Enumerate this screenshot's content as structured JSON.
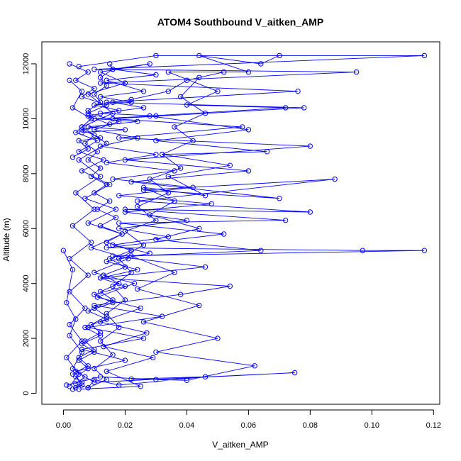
{
  "chart_data": {
    "type": "line",
    "title": "ATOM4 Southbound V_aitken_AMP",
    "xlabel": "V_aitken_AMP",
    "ylabel": "Altitude (m)",
    "xlim": [
      -0.007,
      0.122
    ],
    "ylim": [
      -400,
      12800
    ],
    "x_ticks": [
      0.0,
      0.02,
      0.04,
      0.06,
      0.08,
      0.1,
      0.12
    ],
    "x_tick_labels": [
      "0.00",
      "0.02",
      "0.04",
      "0.06",
      "0.08",
      "0.10",
      "0.12"
    ],
    "y_ticks": [
      0,
      2000,
      4000,
      6000,
      8000,
      10000,
      12000
    ],
    "y_tick_labels": [
      "0",
      "2000",
      "4000",
      "6000",
      "8000",
      "10000",
      "12000"
    ],
    "grid": false,
    "legend": false,
    "color": "#0000ff",
    "marker": "open-circle",
    "series": [
      {
        "points": [
          [
            0.004,
            200
          ],
          [
            0.006,
            400
          ],
          [
            0.003,
            700
          ],
          [
            0.008,
            1000
          ],
          [
            0.005,
            1300
          ],
          [
            0.01,
            1600
          ],
          [
            0.007,
            1900
          ],
          [
            0.012,
            2200
          ],
          [
            0.009,
            2500
          ],
          [
            0.014,
            2800
          ],
          [
            0.01,
            3100
          ],
          [
            0.016,
            3400
          ],
          [
            0.012,
            3700
          ],
          [
            0.018,
            4000
          ],
          [
            0.013,
            4300
          ],
          [
            0.02,
            4600
          ],
          [
            0.015,
            4900
          ],
          [
            0.022,
            5200
          ],
          [
            0.014,
            5500
          ],
          [
            0.019,
            5800
          ],
          [
            0.012,
            6100
          ],
          [
            0.017,
            6400
          ],
          [
            0.011,
            6700
          ],
          [
            0.015,
            7000
          ],
          [
            0.01,
            7300
          ],
          [
            0.014,
            7600
          ],
          [
            0.009,
            7900
          ],
          [
            0.012,
            8200
          ],
          [
            0.008,
            8500
          ],
          [
            0.011,
            8800
          ],
          [
            0.007,
            9100
          ],
          [
            0.01,
            9400
          ],
          [
            0.006,
            9700
          ],
          [
            0.009,
            10000
          ],
          [
            0.008,
            10300
          ],
          [
            0.012,
            10600
          ],
          [
            0.01,
            10900
          ],
          [
            0.014,
            11200
          ],
          [
            0.012,
            11500
          ],
          [
            0.016,
            11800
          ],
          [
            0.015,
            12000
          ]
        ]
      },
      {
        "points": [
          [
            0.002,
            12000
          ],
          [
            0.008,
            11700
          ],
          [
            0.004,
            11400
          ],
          [
            0.01,
            11100
          ],
          [
            0.006,
            10800
          ],
          [
            0.014,
            10500
          ],
          [
            0.008,
            10200
          ],
          [
            0.018,
            9900
          ],
          [
            0.01,
            9600
          ],
          [
            0.024,
            9300
          ],
          [
            0.012,
            9000
          ],
          [
            0.03,
            8700
          ],
          [
            0.014,
            8400
          ],
          [
            0.036,
            8100
          ],
          [
            0.016,
            7800
          ],
          [
            0.042,
            7500
          ],
          [
            0.018,
            7200
          ],
          [
            0.048,
            6900
          ],
          [
            0.02,
            6600
          ],
          [
            0.04,
            6300
          ],
          [
            0.018,
            6000
          ],
          [
            0.034,
            5700
          ],
          [
            0.016,
            5400
          ],
          [
            0.028,
            5100
          ],
          [
            0.014,
            4800
          ],
          [
            0.024,
            4500
          ],
          [
            0.012,
            4200
          ],
          [
            0.02,
            3900
          ],
          [
            0.01,
            3600
          ],
          [
            0.016,
            3300
          ],
          [
            0.008,
            3000
          ],
          [
            0.014,
            2700
          ],
          [
            0.007,
            2400
          ],
          [
            0.012,
            2100
          ],
          [
            0.006,
            1800
          ],
          [
            0.01,
            1500
          ],
          [
            0.005,
            1200
          ],
          [
            0.008,
            900
          ],
          [
            0.004,
            600
          ],
          [
            0.006,
            300
          ],
          [
            0.003,
            150
          ]
        ]
      },
      {
        "points": [
          [
            0.001,
            300
          ],
          [
            0.012,
            600
          ],
          [
            0.03,
            500
          ],
          [
            0.075,
            750
          ],
          [
            0.01,
            400
          ],
          [
            0.004,
            800
          ],
          [
            0.02,
            1200
          ],
          [
            0.006,
            1600
          ],
          [
            0.026,
            2000
          ],
          [
            0.008,
            2400
          ],
          [
            0.032,
            2800
          ],
          [
            0.01,
            3200
          ],
          [
            0.038,
            3600
          ],
          [
            0.054,
            3900
          ],
          [
            0.012,
            4200
          ],
          [
            0.046,
            4600
          ],
          [
            0.016,
            5000
          ],
          [
            0.117,
            5200
          ],
          [
            0.097,
            5200
          ],
          [
            0.014,
            5300
          ],
          [
            0.052,
            5800
          ],
          [
            0.018,
            6200
          ],
          [
            0.072,
            6300
          ],
          [
            0.02,
            6700
          ],
          [
            0.08,
            6600
          ],
          [
            0.024,
            7000
          ],
          [
            0.088,
            7800
          ],
          [
            0.026,
            7400
          ],
          [
            0.07,
            7100
          ],
          [
            0.022,
            7700
          ],
          [
            0.06,
            8100
          ],
          [
            0.02,
            8500
          ],
          [
            0.08,
            9000
          ],
          [
            0.018,
            9300
          ],
          [
            0.058,
            9700
          ],
          [
            0.016,
            10000
          ],
          [
            0.078,
            10400
          ],
          [
            0.014,
            10600
          ],
          [
            0.076,
            11000
          ],
          [
            0.012,
            11300
          ],
          [
            0.095,
            11700
          ],
          [
            0.01,
            11800
          ],
          [
            0.117,
            12300
          ],
          [
            0.03,
            12300
          ],
          [
            0.005,
            11900
          ]
        ]
      },
      {
        "points": [
          [
            0.002,
            11400
          ],
          [
            0.006,
            11000
          ],
          [
            0.003,
            10400
          ],
          [
            0.009,
            10000
          ],
          [
            0.004,
            9500
          ],
          [
            0.011,
            9200
          ],
          [
            0.005,
            8800
          ],
          [
            0.013,
            8500
          ],
          [
            0.006,
            8100
          ],
          [
            0.015,
            7600
          ],
          [
            0.007,
            7100
          ],
          [
            0.017,
            6700
          ],
          [
            0.008,
            6200
          ],
          [
            0.019,
            5800
          ],
          [
            0.009,
            5300
          ],
          [
            0.021,
            4900
          ],
          [
            0.01,
            4400
          ],
          [
            0.023,
            4000
          ],
          [
            0.011,
            3500
          ],
          [
            0.025,
            3100
          ],
          [
            0.012,
            2600
          ],
          [
            0.027,
            2200
          ],
          [
            0.013,
            1700
          ],
          [
            0.029,
            1300
          ],
          [
            0.014,
            800
          ],
          [
            0.025,
            250
          ],
          [
            0.005,
            150
          ]
        ]
      },
      {
        "points": [
          [
            0.0,
            5200
          ],
          [
            0.003,
            4500
          ],
          [
            0.001,
            3300
          ],
          [
            0.004,
            2700
          ],
          [
            0.002,
            2100
          ],
          [
            0.006,
            1500
          ],
          [
            0.003,
            900
          ],
          [
            0.007,
            600
          ],
          [
            0.004,
            350
          ],
          [
            0.008,
            200
          ],
          [
            0.01,
            500
          ],
          [
            0.018,
            300
          ],
          [
            0.046,
            600
          ],
          [
            0.022,
            520
          ],
          [
            0.04,
            470
          ],
          [
            0.062,
            1000
          ],
          [
            0.03,
            1500
          ],
          [
            0.05,
            2000
          ],
          [
            0.026,
            2600
          ],
          [
            0.044,
            3200
          ],
          [
            0.024,
            3800
          ],
          [
            0.036,
            4400
          ],
          [
            0.022,
            5000
          ],
          [
            0.064,
            5200
          ],
          [
            0.03,
            5600
          ],
          [
            0.044,
            6000
          ],
          [
            0.028,
            6500
          ],
          [
            0.036,
            7000
          ],
          [
            0.026,
            7500
          ],
          [
            0.046,
            7200
          ],
          [
            0.034,
            7900
          ],
          [
            0.054,
            8300
          ],
          [
            0.032,
            8700
          ],
          [
            0.066,
            8800
          ],
          [
            0.03,
            9200
          ],
          [
            0.06,
            9600
          ],
          [
            0.028,
            10100
          ],
          [
            0.072,
            10400
          ],
          [
            0.04,
            10500
          ],
          [
            0.05,
            11000
          ],
          [
            0.034,
            11700
          ],
          [
            0.06,
            11700
          ],
          [
            0.044,
            12300
          ],
          [
            0.064,
            12000
          ],
          [
            0.07,
            12300
          ]
        ]
      },
      {
        "points": [
          [
            0.003,
            8600
          ],
          [
            0.008,
            8900
          ],
          [
            0.005,
            9200
          ],
          [
            0.012,
            9300
          ],
          [
            0.006,
            9600
          ],
          [
            0.015,
            9800
          ],
          [
            0.008,
            10100
          ],
          [
            0.018,
            10300
          ],
          [
            0.01,
            10500
          ],
          [
            0.022,
            10600
          ],
          [
            0.012,
            10800
          ],
          [
            0.026,
            11000
          ],
          [
            0.014,
            11400
          ],
          [
            0.03,
            11600
          ],
          [
            0.016,
            11800
          ],
          [
            0.028,
            12000
          ],
          [
            0.012,
            11700
          ],
          [
            0.02,
            11300
          ],
          [
            0.008,
            10900
          ],
          [
            0.016,
            10200
          ],
          [
            0.006,
            9700
          ],
          [
            0.014,
            9100
          ],
          [
            0.005,
            8500
          ],
          [
            0.012,
            7900
          ],
          [
            0.004,
            7300
          ],
          [
            0.01,
            6700
          ],
          [
            0.003,
            6100
          ],
          [
            0.009,
            5500
          ],
          [
            0.002,
            4900
          ],
          [
            0.008,
            4300
          ],
          [
            0.002,
            3700
          ],
          [
            0.007,
            3100
          ],
          [
            0.002,
            2500
          ],
          [
            0.006,
            1900
          ],
          [
            0.001,
            1300
          ],
          [
            0.005,
            700
          ],
          [
            0.002,
            250
          ]
        ]
      },
      {
        "points": [
          [
            0.006,
            9500
          ],
          [
            0.02,
            9600
          ],
          [
            0.008,
            9700
          ],
          [
            0.024,
            9900
          ],
          [
            0.01,
            10000
          ],
          [
            0.03,
            10100
          ],
          [
            0.012,
            10200
          ],
          [
            0.026,
            10400
          ],
          [
            0.016,
            10600
          ],
          [
            0.022,
            10700
          ],
          [
            0.034,
            11000
          ],
          [
            0.04,
            11400
          ],
          [
            0.052,
            11700
          ],
          [
            0.044,
            11500
          ],
          [
            0.038,
            10800
          ],
          [
            0.046,
            10200
          ],
          [
            0.036,
            9700
          ],
          [
            0.042,
            9200
          ],
          [
            0.032,
            8700
          ],
          [
            0.038,
            8200
          ],
          [
            0.028,
            7800
          ],
          [
            0.034,
            7300
          ],
          [
            0.024,
            6800
          ],
          [
            0.03,
            6300
          ],
          [
            0.02,
            5900
          ],
          [
            0.026,
            5400
          ],
          [
            0.018,
            4900
          ],
          [
            0.022,
            4400
          ],
          [
            0.016,
            3900
          ],
          [
            0.02,
            3400
          ],
          [
            0.014,
            2900
          ],
          [
            0.018,
            2400
          ],
          [
            0.012,
            1900
          ],
          [
            0.016,
            1400
          ],
          [
            0.01,
            900
          ],
          [
            0.014,
            500
          ],
          [
            0.008,
            200
          ]
        ]
      }
    ]
  }
}
